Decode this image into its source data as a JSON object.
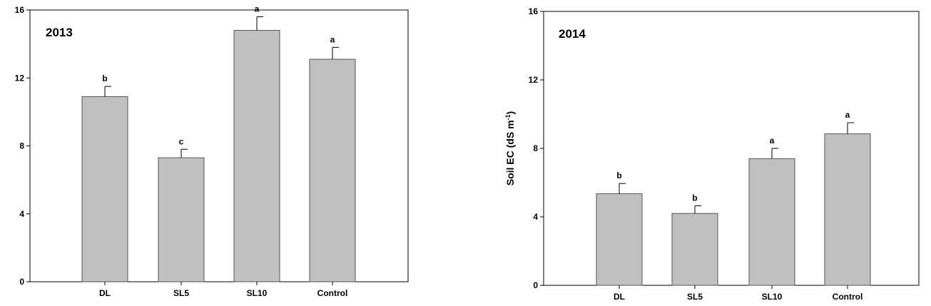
{
  "chart_data": [
    {
      "type": "bar",
      "title": "2013",
      "ylabel": "",
      "xlabel": "",
      "ylim": [
        0,
        16
      ],
      "yticks": [
        0,
        4,
        8,
        12,
        16
      ],
      "categories": [
        "DL",
        "SL5",
        "SL10",
        "Control"
      ],
      "values": [
        10.9,
        7.3,
        14.8,
        13.1
      ],
      "errors": [
        0.6,
        0.5,
        0.8,
        0.7
      ],
      "significance": [
        "b",
        "c",
        "a",
        "a"
      ],
      "bar_color": "#c0c0c0"
    },
    {
      "type": "bar",
      "title": "2014",
      "ylabel": "Soil EC (dS m",
      "ylabel_sup": "-1",
      "ylabel_end": ")",
      "xlabel": "",
      "ylim": [
        0,
        16
      ],
      "yticks": [
        0,
        4,
        8,
        12,
        16
      ],
      "categories": [
        "DL",
        "SL5",
        "SL10",
        "Control"
      ],
      "values": [
        5.35,
        4.2,
        7.4,
        8.85
      ],
      "errors": [
        0.6,
        0.45,
        0.6,
        0.65
      ],
      "significance": [
        "b",
        "b",
        "a",
        "a"
      ],
      "bar_color": "#c0c0c0"
    }
  ]
}
